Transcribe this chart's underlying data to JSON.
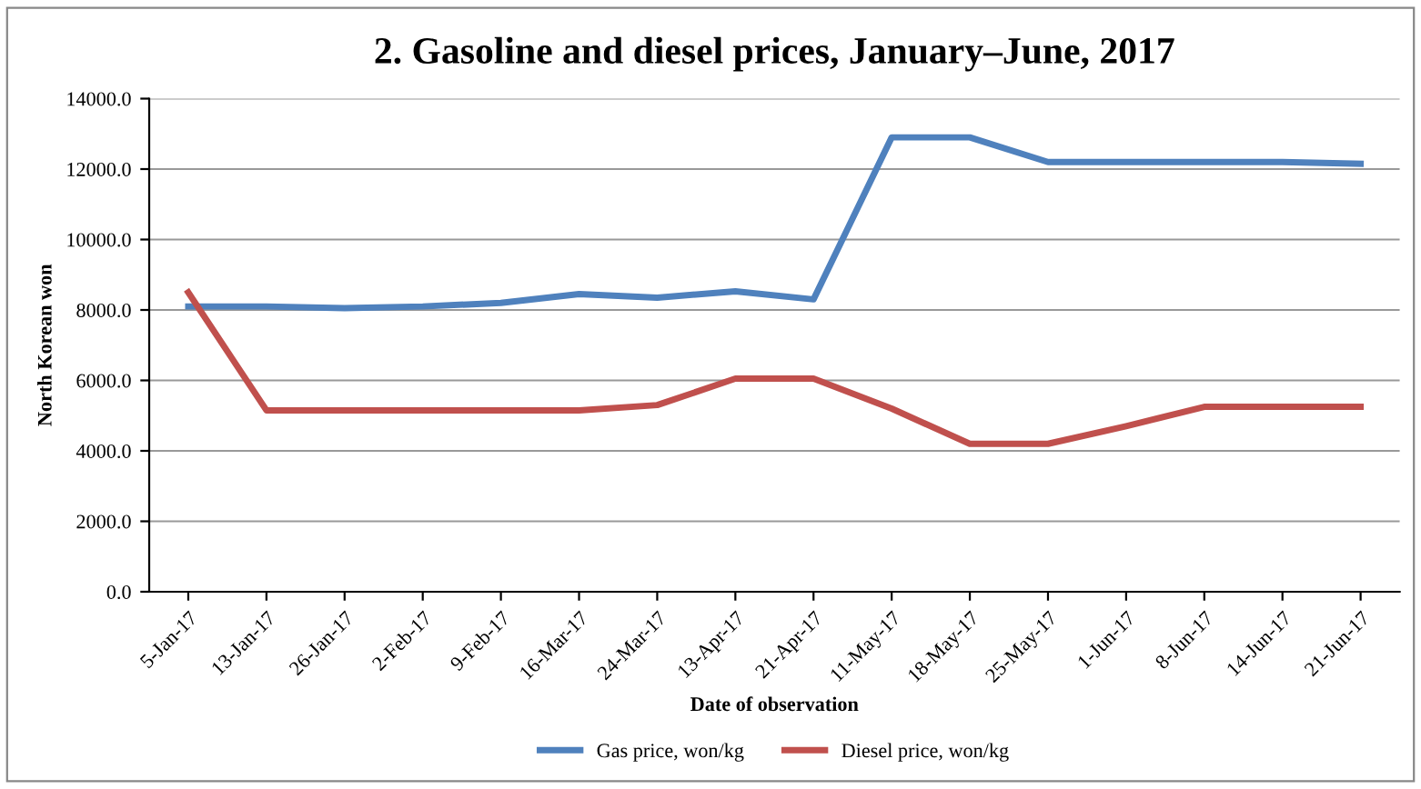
{
  "chart_data": {
    "type": "line",
    "title": "2. Gasoline and diesel prices, January–June, 2017",
    "xlabel": "Date of observation",
    "ylabel": "North Korean won",
    "categories": [
      "5-Jan-17",
      "13-Jan-17",
      "26-Jan-17",
      "2-Feb-17",
      "9-Feb-17",
      "16-Mar-17",
      "24-Mar-17",
      "13-Apr-17",
      "21-Apr-17",
      "11-May-17",
      "18-May-17",
      "25-May-17",
      "1-Jun-17",
      "8-Jun-17",
      "14-Jun-17",
      "21-Jun-17"
    ],
    "series": [
      {
        "name": "Gas price, won/kg",
        "color": "#4f81bd",
        "values": [
          8100,
          8100,
          8050,
          8100,
          8200,
          8450,
          8350,
          8530,
          8300,
          12900,
          12900,
          12200,
          12200,
          12200,
          12200,
          12150
        ]
      },
      {
        "name": "Diesel price, won/kg",
        "color": "#c0504d",
        "values": [
          8500,
          5150,
          5150,
          5150,
          5150,
          5150,
          5300,
          6050,
          6050,
          5200,
          4200,
          4200,
          4700,
          5250,
          5250,
          5250
        ]
      }
    ],
    "ylim": [
      0,
      14000
    ],
    "yticks": [
      {
        "value": 0,
        "label": "0.0"
      },
      {
        "value": 2000,
        "label": "2000.0"
      },
      {
        "value": 4000,
        "label": "4000.0"
      },
      {
        "value": 6000,
        "label": "6000.0"
      },
      {
        "value": 8000,
        "label": "8000.0"
      },
      {
        "value": 10000,
        "label": "10000.0"
      },
      {
        "value": 12000,
        "label": "12000.0"
      },
      {
        "value": 14000,
        "label": "14000.0"
      }
    ],
    "grid": "y",
    "legend": "bottom",
    "marker": "none",
    "line_style": "solid"
  }
}
